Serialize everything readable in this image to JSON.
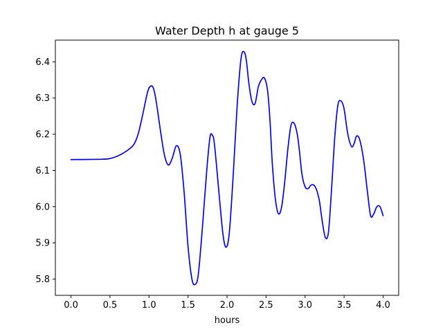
{
  "chart_data": {
    "type": "line",
    "title": "Water Depth h at gauge 5",
    "xlabel": "hours",
    "ylabel": "",
    "xlim": [
      -0.2,
      4.2
    ],
    "ylim": [
      5.755,
      6.46
    ],
    "grid": false,
    "legend": "none",
    "x_ticks": [
      0.0,
      0.5,
      1.0,
      1.5,
      2.0,
      2.5,
      3.0,
      3.5,
      4.0
    ],
    "x_tick_labels": [
      "0.0",
      "0.5",
      "1.0",
      "1.5",
      "2.0",
      "2.5",
      "3.0",
      "3.5",
      "4.0"
    ],
    "y_ticks": [
      5.8,
      5.9,
      6.0,
      6.1,
      6.2,
      6.3,
      6.4
    ],
    "y_tick_labels": [
      "5.8",
      "5.9",
      "6.0",
      "6.1",
      "6.2",
      "6.3",
      "6.4"
    ],
    "series": [
      {
        "color": "#0000ff",
        "x": [
          0.0,
          0.4,
          0.5,
          0.6,
          0.7,
          0.8,
          0.86,
          0.92,
          0.98,
          1.02,
          1.06,
          1.1,
          1.15,
          1.2,
          1.25,
          1.3,
          1.35,
          1.4,
          1.45,
          1.5,
          1.55,
          1.59,
          1.63,
          1.68,
          1.74,
          1.78,
          1.81,
          1.84,
          1.9,
          1.95,
          1.99,
          2.03,
          2.08,
          2.13,
          2.18,
          2.22,
          2.25,
          2.28,
          2.32,
          2.36,
          2.4,
          2.44,
          2.48,
          2.52,
          2.55,
          2.58,
          2.62,
          2.66,
          2.7,
          2.74,
          2.78,
          2.82,
          2.86,
          2.9,
          2.93,
          2.96,
          3.0,
          3.04,
          3.08,
          3.13,
          3.18,
          3.22,
          3.26,
          3.3,
          3.34,
          3.38,
          3.42,
          3.46,
          3.5,
          3.54,
          3.57,
          3.6,
          3.63,
          3.66,
          3.7,
          3.75,
          3.8,
          3.84,
          3.88,
          3.92,
          3.96,
          4.0
        ],
        "y": [
          6.13,
          6.131,
          6.133,
          6.14,
          6.152,
          6.17,
          6.2,
          6.255,
          6.315,
          6.333,
          6.325,
          6.28,
          6.205,
          6.14,
          6.115,
          6.135,
          6.168,
          6.145,
          6.04,
          5.89,
          5.8,
          5.785,
          5.81,
          5.93,
          6.1,
          6.19,
          6.198,
          6.17,
          6.03,
          5.92,
          5.888,
          5.93,
          6.09,
          6.28,
          6.41,
          6.427,
          6.4,
          6.34,
          6.29,
          6.285,
          6.33,
          6.35,
          6.355,
          6.32,
          6.24,
          6.12,
          6.02,
          5.98,
          6.0,
          6.07,
          6.16,
          6.225,
          6.23,
          6.2,
          6.15,
          6.09,
          6.055,
          6.05,
          6.06,
          6.055,
          6.02,
          5.96,
          5.915,
          5.93,
          6.05,
          6.19,
          6.28,
          6.292,
          6.27,
          6.21,
          6.18,
          6.165,
          6.175,
          6.195,
          6.185,
          6.13,
          6.04,
          5.975,
          5.98,
          6.0,
          6.0,
          5.975
        ]
      }
    ]
  }
}
